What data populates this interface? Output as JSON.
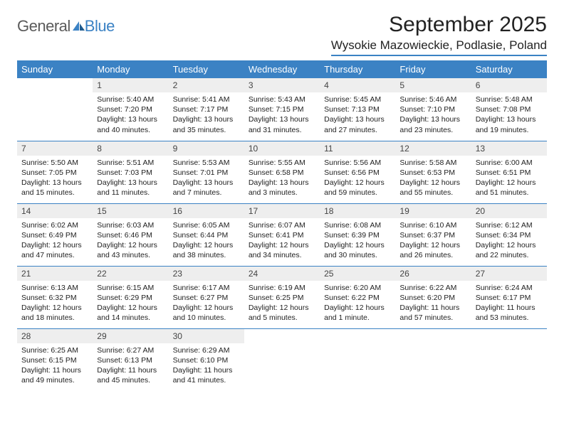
{
  "brand": {
    "word1": "General",
    "word2": "Blue"
  },
  "colors": {
    "accent": "#3b82c4",
    "header_row_bg": "#3b82c4",
    "header_row_text": "#ffffff",
    "daynum_bg": "#eeeeee",
    "text": "#222222",
    "logo_gray": "#5a5a5a"
  },
  "typography": {
    "title_fontsize": 30,
    "location_fontsize": 17,
    "dow_fontsize": 13,
    "daynum_fontsize": 12,
    "body_fontsize": 10.5
  },
  "title": "September 2025",
  "location": "Wysokie Mazowieckie, Podlasie, Poland",
  "days_of_week": [
    "Sunday",
    "Monday",
    "Tuesday",
    "Wednesday",
    "Thursday",
    "Friday",
    "Saturday"
  ],
  "weeks": [
    [
      null,
      {
        "n": "1",
        "sr": "Sunrise: 5:40 AM",
        "ss": "Sunset: 7:20 PM",
        "dl": "Daylight: 13 hours and 40 minutes."
      },
      {
        "n": "2",
        "sr": "Sunrise: 5:41 AM",
        "ss": "Sunset: 7:17 PM",
        "dl": "Daylight: 13 hours and 35 minutes."
      },
      {
        "n": "3",
        "sr": "Sunrise: 5:43 AM",
        "ss": "Sunset: 7:15 PM",
        "dl": "Daylight: 13 hours and 31 minutes."
      },
      {
        "n": "4",
        "sr": "Sunrise: 5:45 AM",
        "ss": "Sunset: 7:13 PM",
        "dl": "Daylight: 13 hours and 27 minutes."
      },
      {
        "n": "5",
        "sr": "Sunrise: 5:46 AM",
        "ss": "Sunset: 7:10 PM",
        "dl": "Daylight: 13 hours and 23 minutes."
      },
      {
        "n": "6",
        "sr": "Sunrise: 5:48 AM",
        "ss": "Sunset: 7:08 PM",
        "dl": "Daylight: 13 hours and 19 minutes."
      }
    ],
    [
      {
        "n": "7",
        "sr": "Sunrise: 5:50 AM",
        "ss": "Sunset: 7:05 PM",
        "dl": "Daylight: 13 hours and 15 minutes."
      },
      {
        "n": "8",
        "sr": "Sunrise: 5:51 AM",
        "ss": "Sunset: 7:03 PM",
        "dl": "Daylight: 13 hours and 11 minutes."
      },
      {
        "n": "9",
        "sr": "Sunrise: 5:53 AM",
        "ss": "Sunset: 7:01 PM",
        "dl": "Daylight: 13 hours and 7 minutes."
      },
      {
        "n": "10",
        "sr": "Sunrise: 5:55 AM",
        "ss": "Sunset: 6:58 PM",
        "dl": "Daylight: 13 hours and 3 minutes."
      },
      {
        "n": "11",
        "sr": "Sunrise: 5:56 AM",
        "ss": "Sunset: 6:56 PM",
        "dl": "Daylight: 12 hours and 59 minutes."
      },
      {
        "n": "12",
        "sr": "Sunrise: 5:58 AM",
        "ss": "Sunset: 6:53 PM",
        "dl": "Daylight: 12 hours and 55 minutes."
      },
      {
        "n": "13",
        "sr": "Sunrise: 6:00 AM",
        "ss": "Sunset: 6:51 PM",
        "dl": "Daylight: 12 hours and 51 minutes."
      }
    ],
    [
      {
        "n": "14",
        "sr": "Sunrise: 6:02 AM",
        "ss": "Sunset: 6:49 PM",
        "dl": "Daylight: 12 hours and 47 minutes."
      },
      {
        "n": "15",
        "sr": "Sunrise: 6:03 AM",
        "ss": "Sunset: 6:46 PM",
        "dl": "Daylight: 12 hours and 43 minutes."
      },
      {
        "n": "16",
        "sr": "Sunrise: 6:05 AM",
        "ss": "Sunset: 6:44 PM",
        "dl": "Daylight: 12 hours and 38 minutes."
      },
      {
        "n": "17",
        "sr": "Sunrise: 6:07 AM",
        "ss": "Sunset: 6:41 PM",
        "dl": "Daylight: 12 hours and 34 minutes."
      },
      {
        "n": "18",
        "sr": "Sunrise: 6:08 AM",
        "ss": "Sunset: 6:39 PM",
        "dl": "Daylight: 12 hours and 30 minutes."
      },
      {
        "n": "19",
        "sr": "Sunrise: 6:10 AM",
        "ss": "Sunset: 6:37 PM",
        "dl": "Daylight: 12 hours and 26 minutes."
      },
      {
        "n": "20",
        "sr": "Sunrise: 6:12 AM",
        "ss": "Sunset: 6:34 PM",
        "dl": "Daylight: 12 hours and 22 minutes."
      }
    ],
    [
      {
        "n": "21",
        "sr": "Sunrise: 6:13 AM",
        "ss": "Sunset: 6:32 PM",
        "dl": "Daylight: 12 hours and 18 minutes."
      },
      {
        "n": "22",
        "sr": "Sunrise: 6:15 AM",
        "ss": "Sunset: 6:29 PM",
        "dl": "Daylight: 12 hours and 14 minutes."
      },
      {
        "n": "23",
        "sr": "Sunrise: 6:17 AM",
        "ss": "Sunset: 6:27 PM",
        "dl": "Daylight: 12 hours and 10 minutes."
      },
      {
        "n": "24",
        "sr": "Sunrise: 6:19 AM",
        "ss": "Sunset: 6:25 PM",
        "dl": "Daylight: 12 hours and 5 minutes."
      },
      {
        "n": "25",
        "sr": "Sunrise: 6:20 AM",
        "ss": "Sunset: 6:22 PM",
        "dl": "Daylight: 12 hours and 1 minute."
      },
      {
        "n": "26",
        "sr": "Sunrise: 6:22 AM",
        "ss": "Sunset: 6:20 PM",
        "dl": "Daylight: 11 hours and 57 minutes."
      },
      {
        "n": "27",
        "sr": "Sunrise: 6:24 AM",
        "ss": "Sunset: 6:17 PM",
        "dl": "Daylight: 11 hours and 53 minutes."
      }
    ],
    [
      {
        "n": "28",
        "sr": "Sunrise: 6:25 AM",
        "ss": "Sunset: 6:15 PM",
        "dl": "Daylight: 11 hours and 49 minutes."
      },
      {
        "n": "29",
        "sr": "Sunrise: 6:27 AM",
        "ss": "Sunset: 6:13 PM",
        "dl": "Daylight: 11 hours and 45 minutes."
      },
      {
        "n": "30",
        "sr": "Sunrise: 6:29 AM",
        "ss": "Sunset: 6:10 PM",
        "dl": "Daylight: 11 hours and 41 minutes."
      },
      null,
      null,
      null,
      null
    ]
  ]
}
